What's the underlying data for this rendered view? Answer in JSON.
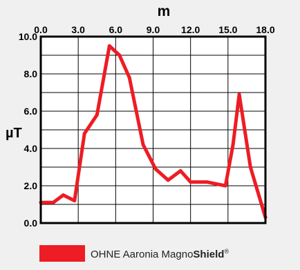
{
  "chart_data": {
    "type": "line",
    "xlabel": "m",
    "ylabel": "µT",
    "xlim": [
      0,
      18
    ],
    "ylim": [
      0,
      10
    ],
    "x_ticks": [
      "0.0",
      "3.0",
      "6.0",
      "9.0",
      "12.0",
      "15.0",
      "18.0"
    ],
    "y_ticks": [
      "0.0",
      "2.0",
      "4.0",
      "6.0",
      "8.0",
      "10.0"
    ],
    "grid": true,
    "series": [
      {
        "name": "OHNE Aaronia MagnoShield®",
        "color": "#ee1c24",
        "points": [
          {
            "x": 0.0,
            "y": 1.1
          },
          {
            "x": 1.0,
            "y": 1.1
          },
          {
            "x": 1.8,
            "y": 1.5
          },
          {
            "x": 2.7,
            "y": 1.2
          },
          {
            "x": 3.5,
            "y": 4.8
          },
          {
            "x": 4.5,
            "y": 5.8
          },
          {
            "x": 5.5,
            "y": 9.5
          },
          {
            "x": 6.3,
            "y": 9.0
          },
          {
            "x": 7.1,
            "y": 7.8
          },
          {
            "x": 8.2,
            "y": 4.2
          },
          {
            "x": 9.2,
            "y": 2.9
          },
          {
            "x": 10.2,
            "y": 2.3
          },
          {
            "x": 11.2,
            "y": 2.8
          },
          {
            "x": 12.0,
            "y": 2.2
          },
          {
            "x": 13.3,
            "y": 2.2
          },
          {
            "x": 14.8,
            "y": 2.0
          },
          {
            "x": 15.4,
            "y": 4.2
          },
          {
            "x": 15.9,
            "y": 6.9
          },
          {
            "x": 16.8,
            "y": 3.0
          },
          {
            "x": 18.0,
            "y": 0.3
          }
        ]
      }
    ],
    "legend": {
      "placement": "bottom-center",
      "label_main": "OHNE Aaronia Magno",
      "label_bold": "Shield",
      "label_mark": "®"
    }
  }
}
